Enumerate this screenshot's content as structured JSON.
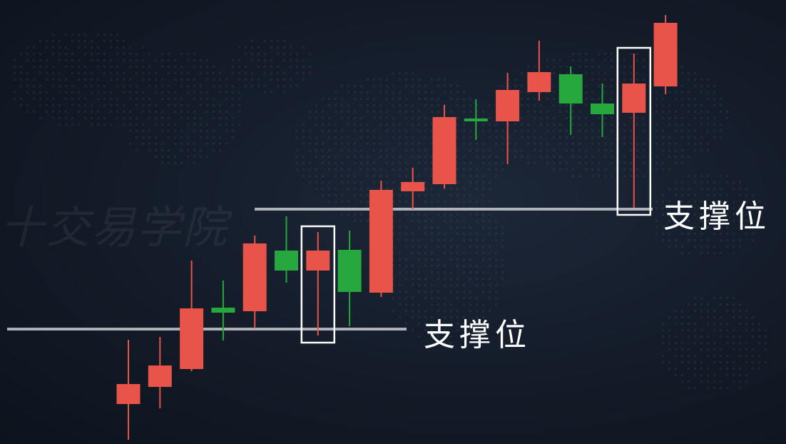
{
  "watermark": "十交易学院",
  "chart_data": {
    "type": "candlestick",
    "title": "",
    "xlabel": "",
    "ylabel": "",
    "ylim": [
      0,
      622
    ],
    "colors": {
      "up": "#e8534a",
      "down": "#27a83e",
      "support_line": "#c9ccd1",
      "highlight_box": "#ffffff"
    },
    "candles": [
      {
        "open": 56,
        "close": 84,
        "high": 146,
        "low": 6,
        "color": "red"
      },
      {
        "open": 80,
        "close": 110,
        "high": 150,
        "low": 50,
        "color": "red"
      },
      {
        "open": 105,
        "close": 190,
        "high": 257,
        "low": 102,
        "color": "red"
      },
      {
        "open": 184,
        "close": 191,
        "high": 229,
        "low": 145,
        "color": "green"
      },
      {
        "open": 186,
        "close": 281,
        "high": 292,
        "low": 162,
        "color": "red"
      },
      {
        "open": 243,
        "close": 271,
        "high": 319,
        "low": 226,
        "color": "green"
      },
      {
        "open": 243,
        "close": 271,
        "high": 297,
        "low": 152,
        "color": "red"
      },
      {
        "open": 213,
        "close": 272,
        "high": 299,
        "low": 165,
        "color": "green"
      },
      {
        "open": 212,
        "close": 356,
        "high": 369,
        "low": 206,
        "color": "red"
      },
      {
        "open": 354,
        "close": 367,
        "high": 387,
        "low": 329,
        "color": "red"
      },
      {
        "open": 364,
        "close": 458,
        "high": 475,
        "low": 358,
        "color": "red"
      },
      {
        "open": 452,
        "close": 456,
        "high": 483,
        "low": 426,
        "color": "green"
      },
      {
        "open": 452,
        "close": 496,
        "high": 520,
        "low": 392,
        "color": "red"
      },
      {
        "open": 493,
        "close": 521,
        "high": 565,
        "low": 481,
        "color": "red"
      },
      {
        "open": 477,
        "close": 518,
        "high": 529,
        "low": 433,
        "color": "green"
      },
      {
        "open": 462,
        "close": 477,
        "high": 505,
        "low": 430,
        "color": "green"
      },
      {
        "open": 464,
        "close": 505,
        "high": 547,
        "low": 331,
        "color": "red"
      },
      {
        "open": 501,
        "close": 590,
        "high": 601,
        "low": 490,
        "color": "red"
      }
    ],
    "support_levels": [
      {
        "label": "支撑位",
        "value": 161,
        "from_candle": 0,
        "to_candle": 9
      },
      {
        "label": "支撑位",
        "value": 329,
        "from_candle": 7,
        "to_candle": 16
      }
    ],
    "highlights": [
      {
        "candle": 6
      },
      {
        "candle": 16
      }
    ]
  }
}
